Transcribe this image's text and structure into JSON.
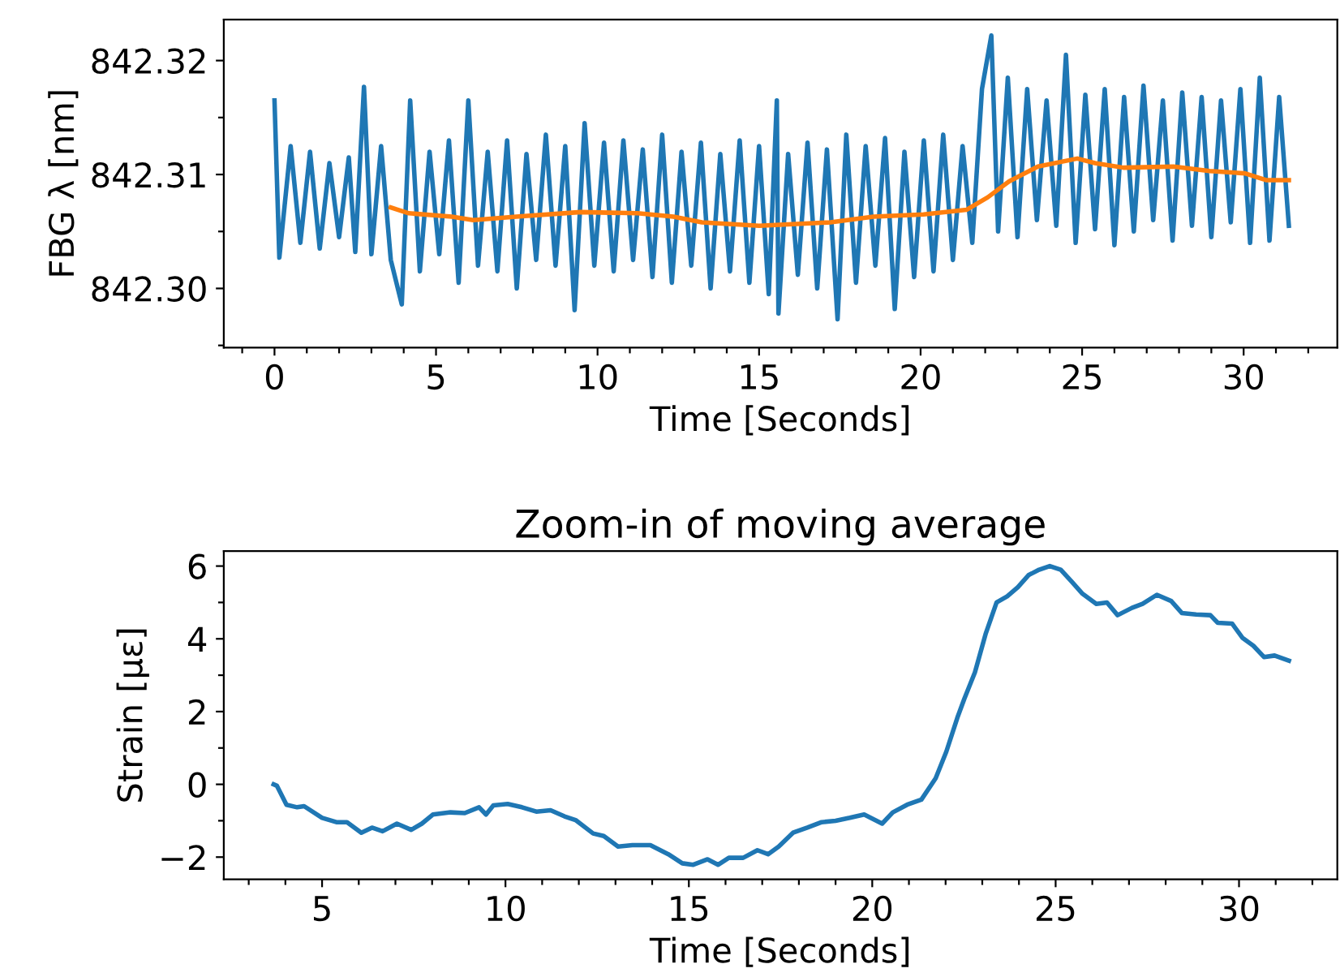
{
  "chart_data": [
    {
      "type": "line",
      "xlabel": "Time [Seconds]",
      "ylabel": "FBG λ [nm]",
      "xlim": [
        -1.57,
        32.9
      ],
      "ylim": [
        842.2948,
        842.3236
      ],
      "xticks": [
        {
          "value": -1,
          "label": null
        },
        0,
        {
          "value": 1,
          "label": null
        },
        {
          "value": 2,
          "label": null
        },
        {
          "value": 3,
          "label": null
        },
        {
          "value": 4,
          "label": null
        },
        5,
        {
          "value": 6,
          "label": null
        },
        {
          "value": 7,
          "label": null
        },
        {
          "value": 8,
          "label": null
        },
        {
          "value": 9,
          "label": null
        },
        10,
        {
          "value": 11,
          "label": null
        },
        {
          "value": 12,
          "label": null
        },
        {
          "value": 13,
          "label": null
        },
        {
          "value": 14,
          "label": null
        },
        15,
        {
          "value": 16,
          "label": null
        },
        {
          "value": 17,
          "label": null
        },
        {
          "value": 18,
          "label": null
        },
        {
          "value": 19,
          "label": null
        },
        20,
        {
          "value": 21,
          "label": null
        },
        {
          "value": 22,
          "label": null
        },
        {
          "value": 23,
          "label": null
        },
        {
          "value": 24,
          "label": null
        },
        25,
        {
          "value": 26,
          "label": null
        },
        {
          "value": 27,
          "label": null
        },
        {
          "value": 28,
          "label": null
        },
        {
          "value": 29,
          "label": null
        },
        30,
        {
          "value": 31,
          "label": null
        },
        {
          "value": 32,
          "label": null
        }
      ],
      "yticks": [
        {
          "value": 842.295,
          "label": null
        },
        {
          "value": 842.3,
          "label": "842.30"
        },
        {
          "value": 842.305,
          "label": null
        },
        {
          "value": 842.31,
          "label": "842.31"
        },
        {
          "value": 842.315,
          "label": null
        },
        {
          "value": 842.32,
          "label": "842.32"
        }
      ],
      "series": [
        {
          "color": "#1f77b4",
          "x": [
            0,
            0.15,
            0.5,
            0.8,
            1.1,
            1.4,
            1.7,
            2.0,
            2.3,
            2.5,
            2.77,
            3.0,
            3.3,
            3.6,
            3.94,
            4.2,
            4.5,
            4.8,
            5.1,
            5.4,
            5.7,
            6.0,
            6.3,
            6.6,
            6.9,
            7.2,
            7.5,
            7.8,
            8.1,
            8.4,
            8.7,
            9.0,
            9.29,
            9.6,
            9.9,
            10.2,
            10.5,
            10.8,
            11.1,
            11.4,
            11.7,
            12.0,
            12.3,
            12.6,
            12.9,
            13.2,
            13.5,
            13.8,
            14.1,
            14.4,
            14.7,
            15.0,
            15.3,
            15.55,
            15.6,
            15.9,
            16.2,
            16.5,
            16.8,
            17.1,
            17.43,
            17.7,
            18.0,
            18.3,
            18.6,
            18.9,
            19.2,
            19.5,
            19.8,
            20.1,
            20.4,
            20.7,
            21.0,
            21.3,
            21.6,
            21.9,
            22.19,
            22.4,
            22.7,
            23.0,
            23.3,
            23.6,
            23.9,
            24.2,
            24.5,
            24.8,
            25.1,
            25.4,
            25.7,
            26.0,
            26.3,
            26.6,
            26.9,
            27.2,
            27.5,
            27.8,
            28.1,
            28.4,
            28.7,
            29.0,
            29.3,
            29.6,
            29.9,
            30.2,
            30.5,
            30.8,
            31.1,
            31.4
          ],
          "values": [
            842.3165,
            842.3027,
            842.3125,
            842.304,
            842.312,
            842.3035,
            842.311,
            842.3045,
            842.3115,
            842.3032,
            842.3177,
            842.303,
            842.3125,
            842.3025,
            842.2986,
            842.3165,
            842.3015,
            842.312,
            842.303,
            842.313,
            842.3005,
            842.3165,
            842.302,
            842.312,
            842.3015,
            842.313,
            842.3,
            842.3118,
            842.3025,
            842.3135,
            842.302,
            842.3125,
            842.2981,
            842.3145,
            842.302,
            842.3128,
            842.3015,
            842.313,
            842.3025,
            842.3122,
            842.301,
            842.3135,
            842.3005,
            842.312,
            842.302,
            842.3128,
            842.3,
            842.3118,
            842.3015,
            842.313,
            842.3005,
            842.3125,
            842.2995,
            842.3165,
            842.2978,
            842.3118,
            842.3012,
            842.3128,
            842.3,
            842.3122,
            842.2973,
            842.3135,
            842.3005,
            842.3125,
            842.302,
            842.3132,
            842.2982,
            842.312,
            842.301,
            842.313,
            842.3015,
            842.3135,
            842.3025,
            842.3125,
            842.304,
            842.3175,
            842.3222,
            842.305,
            842.3185,
            842.3045,
            842.3175,
            842.306,
            842.3165,
            842.3055,
            842.3205,
            842.304,
            842.317,
            842.3052,
            842.3175,
            842.3038,
            842.3168,
            842.305,
            842.3178,
            842.306,
            842.3165,
            842.3042,
            842.3172,
            842.3055,
            842.3168,
            842.3045,
            842.3165,
            842.3058,
            842.3175,
            842.304,
            842.3185,
            842.3042,
            842.3168,
            842.3055
          ]
        },
        {
          "color": "#ff7f0e",
          "x": [
            3.6,
            4.16,
            5.49,
            6.15,
            7.48,
            9.47,
            11.24,
            12.35,
            13.23,
            15.0,
            17.21,
            18.54,
            20.09,
            21.42,
            22.08,
            22.74,
            23.63,
            24.85,
            25.4,
            26.28,
            27.83,
            28.94,
            30.04,
            30.71,
            31.4
          ],
          "values": [
            842.3071,
            842.3066,
            842.3063,
            842.306,
            842.3063,
            842.3067,
            842.3066,
            842.3063,
            842.3058,
            842.3055,
            842.3058,
            842.3063,
            842.3065,
            842.3069,
            842.308,
            842.3094,
            842.3107,
            842.3114,
            842.311,
            842.3106,
            842.3107,
            842.3103,
            842.3101,
            842.3095,
            842.3095
          ]
        }
      ]
    },
    {
      "type": "line",
      "title": "Zoom-in of moving average",
      "xlabel": "Time [Seconds]",
      "ylabel": "Strain [με]",
      "xlim": [
        2.32,
        32.68
      ],
      "ylim": [
        -2.61,
        6.41
      ],
      "xticks": [
        {
          "value": 3,
          "label": null
        },
        {
          "value": 4,
          "label": null
        },
        5,
        {
          "value": 6,
          "label": null
        },
        {
          "value": 7,
          "label": null
        },
        {
          "value": 8,
          "label": null
        },
        {
          "value": 9,
          "label": null
        },
        10,
        {
          "value": 11,
          "label": null
        },
        {
          "value": 12,
          "label": null
        },
        {
          "value": 13,
          "label": null
        },
        {
          "value": 14,
          "label": null
        },
        15,
        {
          "value": 16,
          "label": null
        },
        {
          "value": 17,
          "label": null
        },
        {
          "value": 18,
          "label": null
        },
        {
          "value": 19,
          "label": null
        },
        20,
        {
          "value": 21,
          "label": null
        },
        {
          "value": 22,
          "label": null
        },
        {
          "value": 23,
          "label": null
        },
        {
          "value": 24,
          "label": null
        },
        25,
        {
          "value": 26,
          "label": null
        },
        {
          "value": 27,
          "label": null
        },
        {
          "value": 28,
          "label": null
        },
        {
          "value": 29,
          "label": null
        },
        30,
        {
          "value": 31,
          "label": null
        },
        {
          "value": 32,
          "label": null
        }
      ],
      "yticks": [
        {
          "value": -2,
          "label": "−2"
        },
        {
          "value": -1,
          "label": null
        },
        0,
        {
          "value": 1,
          "label": null
        },
        2,
        {
          "value": 3,
          "label": null
        },
        4,
        {
          "value": 5,
          "label": null
        },
        6
      ],
      "series": [
        {
          "color": "#1f77b4",
          "x": [
            3.68,
            3.77,
            4.03,
            4.32,
            4.51,
            5.0,
            5.39,
            5.68,
            6.07,
            6.36,
            6.65,
            7.04,
            7.43,
            7.72,
            8.02,
            8.5,
            8.89,
            9.28,
            9.47,
            9.67,
            10.06,
            10.45,
            10.84,
            11.23,
            11.61,
            11.91,
            12.39,
            12.68,
            13.07,
            13.46,
            13.95,
            14.44,
            14.82,
            15.12,
            15.51,
            15.8,
            16.09,
            16.48,
            16.87,
            17.16,
            17.45,
            17.84,
            18.23,
            18.62,
            19.0,
            19.39,
            19.78,
            20.27,
            20.56,
            20.95,
            21.34,
            21.73,
            22.02,
            22.32,
            22.51,
            22.8,
            23.09,
            23.39,
            23.68,
            23.97,
            24.26,
            24.55,
            24.84,
            25.14,
            25.43,
            25.72,
            26.11,
            26.4,
            26.69,
            27.08,
            27.37,
            27.76,
            28.15,
            28.44,
            28.83,
            29.22,
            29.42,
            29.81,
            30.1,
            30.39,
            30.68,
            30.97,
            31.36
          ],
          "values": [
            0.0,
            -0.04,
            -0.56,
            -0.63,
            -0.6,
            -0.92,
            -1.04,
            -1.04,
            -1.33,
            -1.19,
            -1.29,
            -1.08,
            -1.25,
            -1.08,
            -0.83,
            -0.77,
            -0.79,
            -0.63,
            -0.83,
            -0.58,
            -0.54,
            -0.63,
            -0.75,
            -0.71,
            -0.88,
            -0.98,
            -1.35,
            -1.42,
            -1.71,
            -1.67,
            -1.67,
            -1.92,
            -2.17,
            -2.21,
            -2.06,
            -2.21,
            -2.02,
            -2.02,
            -1.81,
            -1.92,
            -1.71,
            -1.33,
            -1.19,
            -1.04,
            -1.0,
            -0.92,
            -0.83,
            -1.08,
            -0.77,
            -0.56,
            -0.42,
            0.17,
            0.9,
            1.83,
            2.35,
            3.08,
            4.13,
            5.0,
            5.17,
            5.42,
            5.75,
            5.9,
            6.0,
            5.9,
            5.58,
            5.25,
            4.96,
            5.0,
            4.65,
            4.85,
            4.96,
            5.21,
            5.04,
            4.71,
            4.67,
            4.65,
            4.44,
            4.42,
            4.02,
            3.81,
            3.5,
            3.54,
            3.4
          ]
        }
      ]
    }
  ]
}
